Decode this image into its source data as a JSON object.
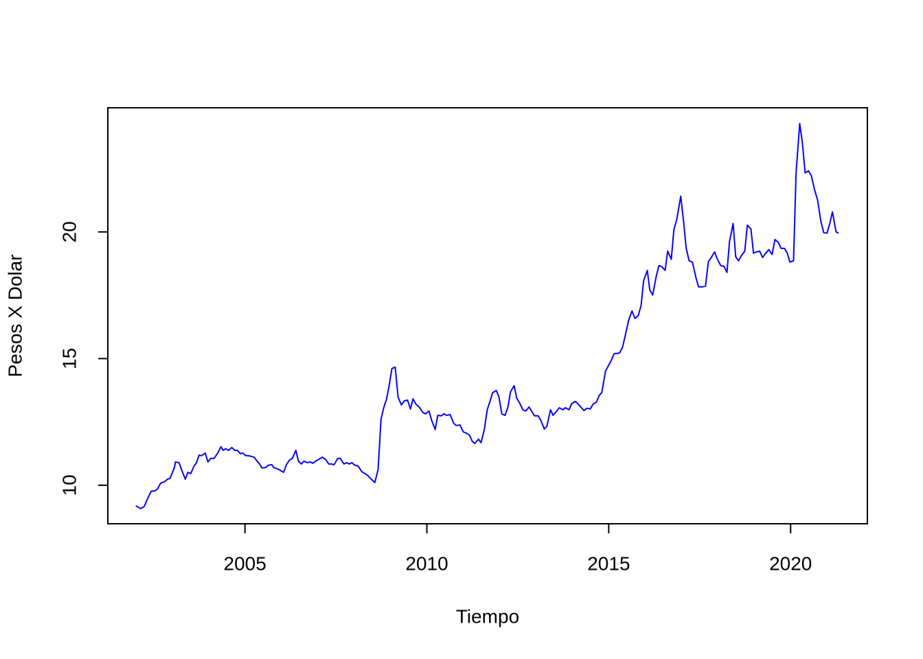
{
  "chart_data": {
    "type": "line",
    "xlabel": "Tiempo",
    "ylabel": "Pesos X Dolar",
    "color": "blue",
    "xlim": [
      2001.23,
      2022.11
    ],
    "ylim": [
      8.48,
      24.9
    ],
    "xticks": [
      2005,
      2010,
      2015,
      2020
    ],
    "yticks": [
      10,
      15,
      20
    ],
    "x": [
      2002.0,
      2002.13,
      2002.23,
      2002.32,
      2002.42,
      2002.53,
      2002.6,
      2002.68,
      2002.79,
      2002.87,
      2002.94,
      2003.06,
      2003.09,
      2003.19,
      2003.26,
      2003.36,
      2003.43,
      2003.51,
      2003.6,
      2003.66,
      2003.74,
      2003.81,
      2003.91,
      2003.98,
      2004.06,
      2004.15,
      2004.25,
      2004.34,
      2004.4,
      2004.47,
      2004.55,
      2004.64,
      2004.72,
      2004.79,
      2004.87,
      2004.94,
      2005.02,
      2005.09,
      2005.17,
      2005.25,
      2005.32,
      2005.4,
      2005.47,
      2005.57,
      2005.64,
      2005.74,
      2005.79,
      2005.89,
      2005.96,
      2006.06,
      2006.15,
      2006.23,
      2006.3,
      2006.4,
      2006.47,
      2006.55,
      2006.62,
      2006.72,
      2006.79,
      2006.87,
      2006.94,
      2007.04,
      2007.13,
      2007.23,
      2007.3,
      2007.38,
      2007.45,
      2007.55,
      2007.62,
      2007.72,
      2007.79,
      2007.87,
      2007.94,
      2008.02,
      2008.11,
      2008.21,
      2008.3,
      2008.38,
      2008.47,
      2008.57,
      2008.66,
      2008.74,
      2008.81,
      2008.89,
      2008.96,
      2009.04,
      2009.13,
      2009.21,
      2009.3,
      2009.38,
      2009.47,
      2009.55,
      2009.62,
      2009.7,
      2009.79,
      2009.89,
      2009.96,
      2010.06,
      2010.13,
      2010.23,
      2010.3,
      2010.4,
      2010.47,
      2010.55,
      2010.64,
      2010.74,
      2010.81,
      2010.91,
      2011.0,
      2011.08,
      2011.17,
      2011.25,
      2011.32,
      2011.42,
      2011.49,
      2011.58,
      2011.66,
      2011.74,
      2011.81,
      2011.91,
      2011.98,
      2012.06,
      2012.15,
      2012.23,
      2012.3,
      2012.4,
      2012.47,
      2012.55,
      2012.64,
      2012.72,
      2012.81,
      2012.89,
      2012.96,
      2013.06,
      2013.13,
      2013.23,
      2013.3,
      2013.4,
      2013.47,
      2013.57,
      2013.64,
      2013.74,
      2013.81,
      2013.91,
      2013.98,
      2014.08,
      2014.15,
      2014.23,
      2014.32,
      2014.4,
      2014.49,
      2014.57,
      2014.66,
      2014.74,
      2014.81,
      2014.91,
      2014.98,
      2015.06,
      2015.15,
      2015.23,
      2015.3,
      2015.38,
      2015.45,
      2015.55,
      2015.64,
      2015.72,
      2015.81,
      2015.89,
      2015.96,
      2016.06,
      2016.13,
      2016.21,
      2016.3,
      2016.38,
      2016.45,
      2016.55,
      2016.62,
      2016.72,
      2016.79,
      2016.87,
      2016.98,
      2017.06,
      2017.13,
      2017.21,
      2017.3,
      2017.4,
      2017.47,
      2017.57,
      2017.66,
      2017.74,
      2017.81,
      2017.91,
      2017.98,
      2018.08,
      2018.17,
      2018.25,
      2018.32,
      2018.42,
      2018.49,
      2018.57,
      2018.64,
      2018.74,
      2018.81,
      2018.91,
      2018.98,
      2019.06,
      2019.15,
      2019.23,
      2019.3,
      2019.4,
      2019.49,
      2019.57,
      2019.66,
      2019.74,
      2019.83,
      2019.91,
      2019.98,
      2020.08,
      2020.15,
      2020.25,
      2020.32,
      2020.4,
      2020.49,
      2020.57,
      2020.66,
      2020.74,
      2020.83,
      2020.91,
      2021.0,
      2021.08,
      2021.15,
      2021.25,
      2021.32
    ],
    "values": [
      9.19,
      9.08,
      9.16,
      9.46,
      9.76,
      9.78,
      9.86,
      10.08,
      10.14,
      10.24,
      10.27,
      10.7,
      10.92,
      10.89,
      10.6,
      10.24,
      10.51,
      10.46,
      10.76,
      10.87,
      11.19,
      11.17,
      11.27,
      10.92,
      11.06,
      11.06,
      11.27,
      11.52,
      11.38,
      11.44,
      11.38,
      11.49,
      11.38,
      11.38,
      11.25,
      11.27,
      11.17,
      11.17,
      11.14,
      11.11,
      10.98,
      10.84,
      10.68,
      10.7,
      10.79,
      10.81,
      10.7,
      10.65,
      10.6,
      10.51,
      10.84,
      11.0,
      11.06,
      11.38,
      10.95,
      10.84,
      10.95,
      10.89,
      10.92,
      10.87,
      10.95,
      11.03,
      11.11,
      11.0,
      10.84,
      10.84,
      10.81,
      11.06,
      11.06,
      10.84,
      10.89,
      10.84,
      10.89,
      10.79,
      10.76,
      10.54,
      10.46,
      10.38,
      10.24,
      10.11,
      10.62,
      12.6,
      13.04,
      13.39,
      13.9,
      14.61,
      14.66,
      13.47,
      13.17,
      13.33,
      13.36,
      13.01,
      13.41,
      13.2,
      13.09,
      12.87,
      12.82,
      12.93,
      12.57,
      12.2,
      12.76,
      12.74,
      12.82,
      12.76,
      12.79,
      12.44,
      12.36,
      12.38,
      12.11,
      12.06,
      11.98,
      11.73,
      11.65,
      11.82,
      11.68,
      12.2,
      12.98,
      13.33,
      13.66,
      13.74,
      13.5,
      12.82,
      12.76,
      13.09,
      13.69,
      13.93,
      13.44,
      13.25,
      12.98,
      12.93,
      13.09,
      12.9,
      12.74,
      12.74,
      12.57,
      12.22,
      12.33,
      12.98,
      12.76,
      12.93,
      13.06,
      12.98,
      13.06,
      12.98,
      13.22,
      13.31,
      13.22,
      13.09,
      12.95,
      13.04,
      13.01,
      13.2,
      13.28,
      13.55,
      13.66,
      14.5,
      14.69,
      14.9,
      15.2,
      15.2,
      15.23,
      15.45,
      15.88,
      16.53,
      16.88,
      16.59,
      16.69,
      17.1,
      18.08,
      18.48,
      17.7,
      17.51,
      18.21,
      18.67,
      18.64,
      18.48,
      19.24,
      18.92,
      20.08,
      20.49,
      21.41,
      20.38,
      19.35,
      18.86,
      18.81,
      18.18,
      17.83,
      17.83,
      17.86,
      18.83,
      18.97,
      19.21,
      18.94,
      18.67,
      18.64,
      18.4,
      19.62,
      20.33,
      19.02,
      18.86,
      19.05,
      19.24,
      20.27,
      20.11,
      19.16,
      19.21,
      19.24,
      18.99,
      19.13,
      19.3,
      19.11,
      19.7,
      19.59,
      19.35,
      19.35,
      19.16,
      18.81,
      18.86,
      22.33,
      24.28,
      23.55,
      22.33,
      22.41,
      22.22,
      21.65,
      21.27,
      20.43,
      19.97,
      19.95,
      20.35,
      20.79,
      20.0,
      19.95
    ]
  }
}
